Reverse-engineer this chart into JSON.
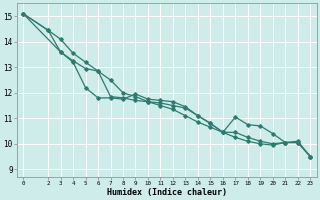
{
  "xlabel": "Humidex (Indice chaleur)",
  "bg_color": "#ceecea",
  "grid_color": "#ffffff",
  "line_color": "#2d7a6e",
  "xlim": [
    -0.5,
    23.5
  ],
  "ylim": [
    8.7,
    15.5
  ],
  "yticks": [
    9,
    10,
    11,
    12,
    13,
    14,
    15
  ],
  "xticks": [
    0,
    2,
    3,
    4,
    5,
    6,
    7,
    8,
    9,
    10,
    11,
    12,
    13,
    14,
    15,
    16,
    17,
    18,
    19,
    20,
    21,
    22,
    23
  ],
  "line1_x": [
    0,
    2,
    3,
    4,
    5,
    6,
    7,
    8,
    9,
    10,
    11,
    12,
    13,
    14,
    15,
    16,
    17,
    18,
    19,
    20,
    21,
    22,
    23
  ],
  "line1_y": [
    15.1,
    14.45,
    14.1,
    13.55,
    13.2,
    12.85,
    12.5,
    12.0,
    11.85,
    11.65,
    11.5,
    11.35,
    11.1,
    10.85,
    10.65,
    10.45,
    10.25,
    10.1,
    10.0,
    9.95,
    10.05,
    10.05,
    9.5
  ],
  "line2_x": [
    0,
    3,
    4,
    5,
    6,
    7,
    8,
    9,
    10,
    11,
    12,
    13,
    14,
    15,
    16,
    17,
    18,
    19,
    20,
    21,
    22,
    23
  ],
  "line2_y": [
    15.1,
    13.6,
    13.2,
    12.2,
    11.8,
    11.8,
    11.75,
    11.95,
    11.75,
    11.7,
    11.65,
    11.45,
    11.1,
    10.8,
    10.45,
    11.05,
    10.75,
    10.7,
    10.4,
    10.05,
    10.1,
    9.5
  ],
  "line3_x": [
    0,
    2,
    3,
    4,
    5,
    6,
    7,
    8,
    9,
    10,
    11,
    12,
    13,
    14,
    15,
    16,
    17,
    18,
    19,
    20,
    21,
    22,
    23
  ],
  "line3_y": [
    15.1,
    14.45,
    13.6,
    13.25,
    12.95,
    12.85,
    11.85,
    11.8,
    11.7,
    11.65,
    11.6,
    11.5,
    11.4,
    11.1,
    10.8,
    10.45,
    10.45,
    10.25,
    10.1,
    10.0,
    10.05,
    10.05,
    9.5
  ]
}
